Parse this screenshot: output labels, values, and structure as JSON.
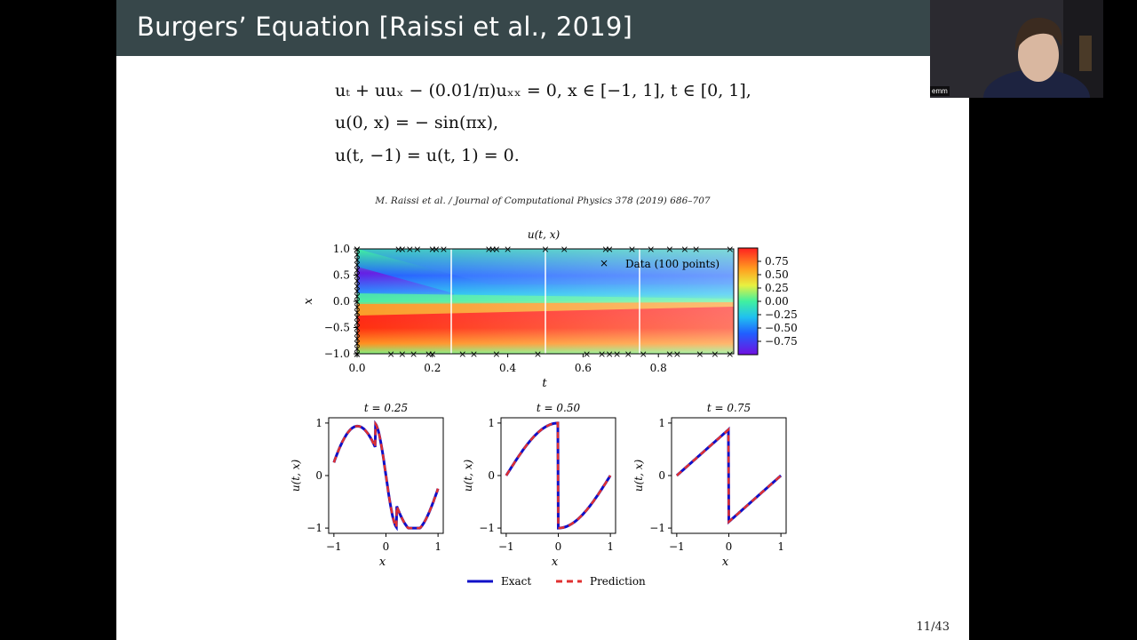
{
  "slide": {
    "title": "Burgers’ Equation [Raissi et al., 2019]",
    "equations": [
      "uₜ + uuₓ − (0.01/π)uₓₓ = 0,   x ∈ [−1, 1],   t ∈ [0, 1],",
      "u(0, x) = − sin(πx),",
      "u(t, −1) = u(t, 1) = 0."
    ],
    "citation": "M. Raissi et al. / Journal of Computational Physics 378 (2019) 686–707",
    "page_number": "11/43"
  },
  "webcam": {
    "participant_name": "emm"
  },
  "colors": {
    "title_bar": "#37474a",
    "exact": "#1010c8",
    "prediction": "#e03030"
  },
  "chart_data": [
    {
      "type": "heatmap",
      "title": "u(t, x)",
      "xlabel": "t",
      "ylabel": "x",
      "xlim": [
        0,
        1
      ],
      "ylim": [
        -1,
        1
      ],
      "x_ticks": [
        "0.0",
        "0.2",
        "0.4",
        "0.6",
        "0.8"
      ],
      "y_ticks": [
        "1.0",
        "0.5",
        "0.0",
        "−0.5",
        "−1.0"
      ],
      "colorbar_ticks": [
        "0.75",
        "0.50",
        "0.25",
        "0.00",
        "−0.25",
        "−0.50",
        "−0.75"
      ],
      "colorbar_range": [
        -1,
        1
      ],
      "legend": {
        "label": "Data (100 points)",
        "placement": "top-right"
      },
      "slice_lines_t": [
        0.25,
        0.5,
        0.75
      ],
      "data_points_t_top": [
        0.0,
        0.11,
        0.12,
        0.14,
        0.16,
        0.2,
        0.21,
        0.23,
        0.35,
        0.36,
        0.37,
        0.4,
        0.5,
        0.55,
        0.66,
        0.67,
        0.73,
        0.78,
        0.83,
        0.87,
        0.9,
        0.99
      ],
      "data_points_t_bottom": [
        0.0,
        0.09,
        0.12,
        0.15,
        0.19,
        0.2,
        0.28,
        0.31,
        0.37,
        0.48,
        0.61,
        0.65,
        0.67,
        0.69,
        0.72,
        0.76,
        0.83,
        0.85,
        0.91,
        0.95,
        0.99
      ]
    },
    {
      "type": "line",
      "title": "t = 0.25",
      "xlabel": "x",
      "ylabel": "u(t, x)",
      "xlim": [
        -1.1,
        1.1
      ],
      "ylim": [
        -1.1,
        1.1
      ],
      "x_ticks": [
        "−1",
        "0",
        "1"
      ],
      "y_ticks": [
        "1",
        "0",
        "−1"
      ],
      "t": 0.25,
      "series": [
        {
          "name": "Exact"
        },
        {
          "name": "Prediction"
        }
      ]
    },
    {
      "type": "line",
      "title": "t = 0.50",
      "xlabel": "x",
      "ylabel": "u(t, x)",
      "xlim": [
        -1.1,
        1.1
      ],
      "ylim": [
        -1.1,
        1.1
      ],
      "x_ticks": [
        "−1",
        "0",
        "1"
      ],
      "y_ticks": [
        "1",
        "0",
        "−1"
      ],
      "t": 0.5,
      "series": [
        {
          "name": "Exact"
        },
        {
          "name": "Prediction"
        }
      ]
    },
    {
      "type": "line",
      "title": "t = 0.75",
      "xlabel": "x",
      "ylabel": "u(t, x)",
      "xlim": [
        -1.1,
        1.1
      ],
      "ylim": [
        -1.1,
        1.1
      ],
      "x_ticks": [
        "−1",
        "0",
        "1"
      ],
      "y_ticks": [
        "1",
        "0",
        "−1"
      ],
      "t": 0.75,
      "series": [
        {
          "name": "Exact"
        },
        {
          "name": "Prediction"
        }
      ]
    }
  ],
  "legend": {
    "exact_label": "Exact",
    "prediction_label": "Prediction"
  }
}
